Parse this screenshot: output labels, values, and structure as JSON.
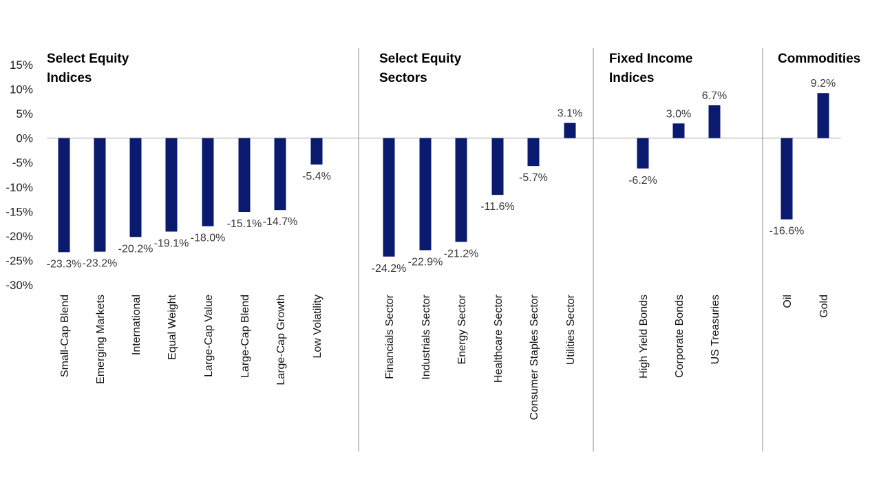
{
  "chart_data": {
    "type": "bar",
    "ylim": [
      -30,
      15
    ],
    "yticks": [
      15,
      10,
      5,
      0,
      -5,
      -10,
      -15,
      -20,
      -25,
      -30
    ],
    "ytick_labels": [
      "15%",
      "10%",
      "5%",
      "0%",
      "-5%",
      "-10%",
      "-15%",
      "-20%",
      "-25%",
      "-30%"
    ],
    "bar_color": "#0a1a6e",
    "groups": [
      {
        "title": "Select Equity Indices",
        "categories": [
          "Small-Cap Blend",
          "Emerging Markets",
          "International",
          "Equal Weight",
          "Large-Cap Value",
          "Large-Cap Blend",
          "Large-Cap Growth",
          "Low Volatility"
        ],
        "values": [
          -23.3,
          -23.2,
          -20.2,
          -19.1,
          -18.0,
          -15.1,
          -14.7,
          -5.4
        ],
        "labels": [
          "-23.3%",
          "-23.2%",
          "-20.2%",
          "-19.1%",
          "-18.0%",
          "-15.1%",
          "-14.7%",
          "-5.4%"
        ]
      },
      {
        "title": "Select Equity Sectors",
        "categories": [
          "Financials Sector",
          "Industrials Sector",
          "Energy Sector",
          "Healthcare Sector",
          "Consumer Staples Sector",
          "Utilities Sector"
        ],
        "values": [
          -24.2,
          -22.9,
          -21.2,
          -11.6,
          -5.7,
          3.1
        ],
        "labels": [
          "-24.2%",
          "-22.9%",
          "-21.2%",
          "-11.6%",
          "-5.7%",
          "3.1%"
        ]
      },
      {
        "title": "Fixed Income Indices",
        "categories": [
          "High Yield Bonds",
          "Corporate Bonds",
          "US Treasuries"
        ],
        "values": [
          -6.2,
          3.0,
          6.7
        ],
        "labels": [
          "-6.2%",
          "3.0%",
          "6.7%"
        ]
      },
      {
        "title": "Commodities",
        "categories": [
          "Oil",
          "Gold"
        ],
        "values": [
          -16.6,
          9.2
        ],
        "labels": [
          "-16.6%",
          "9.2%"
        ]
      }
    ]
  }
}
